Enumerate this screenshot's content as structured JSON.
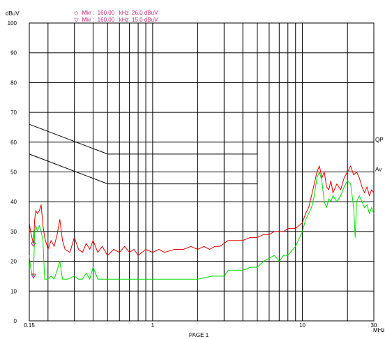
{
  "chart_data": {
    "type": "line",
    "title": "",
    "ylabel": "dBuV",
    "xlabel": "PAGE 1",
    "x_unit": "MHz",
    "x_scale": "log",
    "xlim": [
      0.15,
      30
    ],
    "ylim": [
      0,
      100
    ],
    "x_tick_labels": [
      {
        "value": 0.15,
        "label": "0.15"
      },
      {
        "value": 1,
        "label": "1"
      },
      {
        "value": 10,
        "label": "10"
      },
      {
        "value": 30,
        "label": "30"
      }
    ],
    "y_ticks": [
      0,
      10,
      20,
      30,
      40,
      50,
      60,
      70,
      80,
      90,
      100
    ],
    "grid": true,
    "markers": [
      {
        "symbol": "◇",
        "text": "Mkr :  160.00   kHz  26.0 dBuV",
        "x": 0.16,
        "y": 26.0
      },
      {
        "symbol": "▽",
        "text": "Mkr :  160.00   kHz  15.0 dBuV",
        "x": 0.16,
        "y": 15.0
      }
    ],
    "limit_lines": [
      {
        "name": "QP",
        "points": [
          [
            0.15,
            66
          ],
          [
            0.5,
            56
          ],
          [
            5,
            56
          ],
          [
            5,
            60
          ],
          [
            30,
            60
          ]
        ]
      },
      {
        "name": "Av",
        "points": [
          [
            0.15,
            56
          ],
          [
            0.5,
            46
          ],
          [
            5,
            46
          ],
          [
            5,
            50
          ],
          [
            30,
            50
          ]
        ]
      }
    ],
    "series": [
      {
        "name": "",
        "color": "#e00000",
        "points": [
          [
            0.15,
            33
          ],
          [
            0.153,
            30
          ],
          [
            0.156,
            28
          ],
          [
            0.16,
            26
          ],
          [
            0.163,
            34
          ],
          [
            0.166,
            37
          ],
          [
            0.17,
            36
          ],
          [
            0.175,
            37
          ],
          [
            0.18,
            39
          ],
          [
            0.185,
            32
          ],
          [
            0.19,
            28
          ],
          [
            0.2,
            24
          ],
          [
            0.21,
            27
          ],
          [
            0.22,
            25
          ],
          [
            0.23,
            29
          ],
          [
            0.24,
            34
          ],
          [
            0.25,
            27
          ],
          [
            0.26,
            24
          ],
          [
            0.28,
            23
          ],
          [
            0.3,
            28
          ],
          [
            0.32,
            24
          ],
          [
            0.34,
            23
          ],
          [
            0.36,
            26
          ],
          [
            0.38,
            24
          ],
          [
            0.4,
            27
          ],
          [
            0.43,
            23
          ],
          [
            0.46,
            25
          ],
          [
            0.5,
            22
          ],
          [
            0.55,
            24
          ],
          [
            0.6,
            23
          ],
          [
            0.65,
            25
          ],
          [
            0.7,
            23
          ],
          [
            0.75,
            24
          ],
          [
            0.8,
            22
          ],
          [
            0.9,
            24
          ],
          [
            1.0,
            23
          ],
          [
            1.1,
            24
          ],
          [
            1.2,
            23
          ],
          [
            1.4,
            24
          ],
          [
            1.6,
            24
          ],
          [
            1.8,
            25
          ],
          [
            2.0,
            24
          ],
          [
            2.2,
            25
          ],
          [
            2.4,
            24
          ],
          [
            2.6,
            25
          ],
          [
            2.8,
            25
          ],
          [
            3.0,
            26
          ],
          [
            3.2,
            27
          ],
          [
            3.5,
            27
          ],
          [
            4.0,
            27
          ],
          [
            4.5,
            28
          ],
          [
            5.0,
            28
          ],
          [
            5.5,
            29
          ],
          [
            6.0,
            29
          ],
          [
            6.5,
            30
          ],
          [
            7.0,
            30
          ],
          [
            7.5,
            30
          ],
          [
            8.0,
            31
          ],
          [
            9.0,
            31
          ],
          [
            10.0,
            33
          ],
          [
            10.5,
            36
          ],
          [
            11.0,
            38
          ],
          [
            11.5,
            42
          ],
          [
            12.0,
            46
          ],
          [
            12.5,
            50
          ],
          [
            13.0,
            52
          ],
          [
            13.5,
            48
          ],
          [
            14.0,
            50
          ],
          [
            14.5,
            45
          ],
          [
            15.0,
            44
          ],
          [
            15.5,
            47
          ],
          [
            16.0,
            43
          ],
          [
            17.0,
            46
          ],
          [
            18.0,
            44
          ],
          [
            19.0,
            48
          ],
          [
            20.0,
            50
          ],
          [
            21.0,
            52
          ],
          [
            22.0,
            49
          ],
          [
            23.0,
            50
          ],
          [
            24.0,
            48
          ],
          [
            25.0,
            45
          ],
          [
            26.0,
            43
          ],
          [
            27.0,
            45
          ],
          [
            28.0,
            42
          ],
          [
            29.0,
            44
          ],
          [
            30.0,
            43
          ]
        ]
      },
      {
        "name": "",
        "color": "#00dd00",
        "points": [
          [
            0.15,
            22
          ],
          [
            0.153,
            18
          ],
          [
            0.156,
            16
          ],
          [
            0.16,
            15
          ],
          [
            0.163,
            30
          ],
          [
            0.166,
            32
          ],
          [
            0.17,
            30
          ],
          [
            0.175,
            32
          ],
          [
            0.18,
            30
          ],
          [
            0.185,
            27
          ],
          [
            0.19,
            14
          ],
          [
            0.2,
            14
          ],
          [
            0.21,
            15
          ],
          [
            0.22,
            14
          ],
          [
            0.23,
            17
          ],
          [
            0.24,
            20
          ],
          [
            0.25,
            14
          ],
          [
            0.27,
            14
          ],
          [
            0.3,
            15
          ],
          [
            0.32,
            14
          ],
          [
            0.34,
            14
          ],
          [
            0.36,
            16
          ],
          [
            0.38,
            14
          ],
          [
            0.4,
            18
          ],
          [
            0.43,
            14
          ],
          [
            0.5,
            14
          ],
          [
            0.6,
            14
          ],
          [
            0.7,
            14
          ],
          [
            0.8,
            14
          ],
          [
            1.0,
            14
          ],
          [
            1.2,
            14
          ],
          [
            1.5,
            14
          ],
          [
            2.0,
            14
          ],
          [
            2.5,
            15
          ],
          [
            3.0,
            15
          ],
          [
            3.2,
            17
          ],
          [
            3.5,
            17
          ],
          [
            4.0,
            17
          ],
          [
            4.5,
            18
          ],
          [
            5.0,
            18
          ],
          [
            5.5,
            20
          ],
          [
            6.0,
            21
          ],
          [
            6.5,
            22
          ],
          [
            7.0,
            20
          ],
          [
            7.5,
            22
          ],
          [
            8.0,
            22
          ],
          [
            9.0,
            25
          ],
          [
            10.0,
            30
          ],
          [
            10.5,
            34
          ],
          [
            11.0,
            36
          ],
          [
            11.5,
            38
          ],
          [
            12.0,
            42
          ],
          [
            12.5,
            48
          ],
          [
            13.0,
            50
          ],
          [
            13.5,
            47
          ],
          [
            14.0,
            40
          ],
          [
            14.5,
            38
          ],
          [
            15.0,
            41
          ],
          [
            15.5,
            40
          ],
          [
            16.0,
            42
          ],
          [
            17.0,
            40
          ],
          [
            18.0,
            42
          ],
          [
            19.0,
            45
          ],
          [
            20.0,
            47
          ],
          [
            21.0,
            46
          ],
          [
            22.0,
            38
          ],
          [
            22.5,
            28
          ],
          [
            23.0,
            40
          ],
          [
            24.0,
            42
          ],
          [
            25.0,
            40
          ],
          [
            26.0,
            38
          ],
          [
            27.0,
            39
          ],
          [
            28.0,
            36
          ],
          [
            29.0,
            38
          ],
          [
            30.0,
            36
          ]
        ]
      }
    ]
  }
}
